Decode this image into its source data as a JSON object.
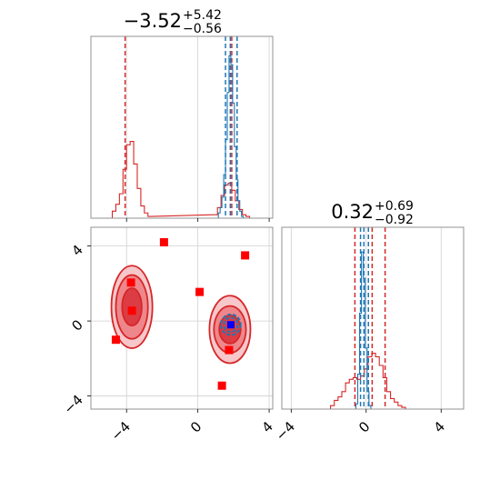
{
  "chart_data": [
    {
      "type": "histogram",
      "panel": "top-left",
      "title": {
        "value": "−3.52",
        "plus": "+5.42",
        "minus": "−0.56"
      },
      "xlim": [
        -6,
        4.2
      ],
      "grid": true,
      "xticks": [
        -4,
        0,
        4
      ],
      "series": [
        {
          "color": "#d62728",
          "bins": [
            -4.7,
            -4.5,
            -4.3,
            -4.1,
            -3.9,
            -3.7,
            -3.5,
            -3.3,
            -3.1,
            -2.9,
            -2.7,
            1.0,
            1.2,
            1.4,
            1.6,
            1.8,
            2.0,
            2.2,
            2.4,
            2.6,
            2.8
          ],
          "counts": [
            0.04,
            0.08,
            0.14,
            0.28,
            0.42,
            0.44,
            0.31,
            0.17,
            0.07,
            0.03,
            0.01,
            0.02,
            0.06,
            0.13,
            0.19,
            0.2,
            0.16,
            0.1,
            0.05,
            0.02,
            0.01
          ],
          "quantiles": [
            -4.08,
            1.9
          ]
        },
        {
          "color": "#1f77b4",
          "bins": [
            1.2,
            1.3,
            1.4,
            1.5,
            1.6,
            1.7,
            1.8,
            1.9,
            2.0,
            2.1,
            2.2,
            2.3,
            2.4,
            2.5
          ],
          "counts": [
            0.03,
            0.06,
            0.12,
            0.25,
            0.45,
            0.72,
            0.93,
            0.88,
            0.66,
            0.41,
            0.22,
            0.1,
            0.04,
            0.01
          ],
          "quantiles": [
            1.55,
            1.82,
            2.2
          ]
        }
      ]
    },
    {
      "type": "contour",
      "panel": "bottom-left",
      "xlim": [
        -6,
        4.2
      ],
      "ylim": [
        -4.7,
        5.0
      ],
      "grid": true,
      "xticks": [
        -4,
        0,
        4
      ],
      "yticks": [
        -4,
        0,
        4
      ],
      "contours": [
        {
          "cx": -3.7,
          "cy": 0.75,
          "rx": [
            1.15,
            0.9,
            0.55
          ],
          "ry": [
            2.2,
            1.7,
            1.0
          ],
          "color": "#d62728"
        },
        {
          "cx": 1.8,
          "cy": -0.45,
          "rx": [
            1.15,
            0.9,
            0.6
          ],
          "ry": [
            1.8,
            1.25,
            0.75
          ],
          "color": "#d62728"
        },
        {
          "cx": 1.85,
          "cy": -0.2,
          "rx": [
            0.55,
            0.38
          ],
          "ry": [
            0.55,
            0.38
          ],
          "color": "#1f77b4"
        }
      ],
      "red_points": [
        [
          -1.9,
          4.2
        ],
        [
          2.65,
          3.5
        ],
        [
          -3.75,
          2.05
        ],
        [
          0.1,
          1.55
        ],
        [
          -3.7,
          0.55
        ],
        [
          -4.6,
          -1.0
        ],
        [
          1.75,
          -1.55
        ],
        [
          1.35,
          -3.45
        ]
      ],
      "blue_points": [
        [
          1.85,
          -0.2
        ]
      ]
    },
    {
      "type": "histogram",
      "panel": "bottom-right",
      "title": {
        "value": "0.32",
        "plus": "+0.69",
        "minus": "−0.92"
      },
      "xlim": [
        -4.5,
        5.2
      ],
      "grid": true,
      "xticks": [
        -4,
        0,
        4
      ],
      "series": [
        {
          "color": "#d62728",
          "bins": [
            -1.8,
            -1.6,
            -1.4,
            -1.2,
            -1.0,
            -0.8,
            -0.6,
            -0.4,
            -0.2,
            0.0,
            0.2,
            0.4,
            0.6,
            0.8,
            1.0,
            1.2,
            1.4,
            1.6,
            1.8,
            2.0
          ],
          "counts": [
            0.02,
            0.05,
            0.07,
            0.1,
            0.15,
            0.17,
            0.18,
            0.17,
            0.19,
            0.23,
            0.3,
            0.32,
            0.3,
            0.25,
            0.18,
            0.1,
            0.06,
            0.04,
            0.02,
            0.01
          ],
          "quantiles": [
            -0.6,
            0.32,
            1.01
          ]
        },
        {
          "color": "#1f77b4",
          "bins": [
            -0.5,
            -0.4,
            -0.3,
            -0.2,
            -0.1,
            0.0,
            0.1,
            0.2
          ],
          "counts": [
            0.03,
            0.2,
            0.55,
            0.9,
            0.75,
            0.35,
            0.1,
            0.02
          ],
          "quantiles": [
            -0.3,
            -0.12,
            0.12
          ]
        }
      ]
    }
  ]
}
